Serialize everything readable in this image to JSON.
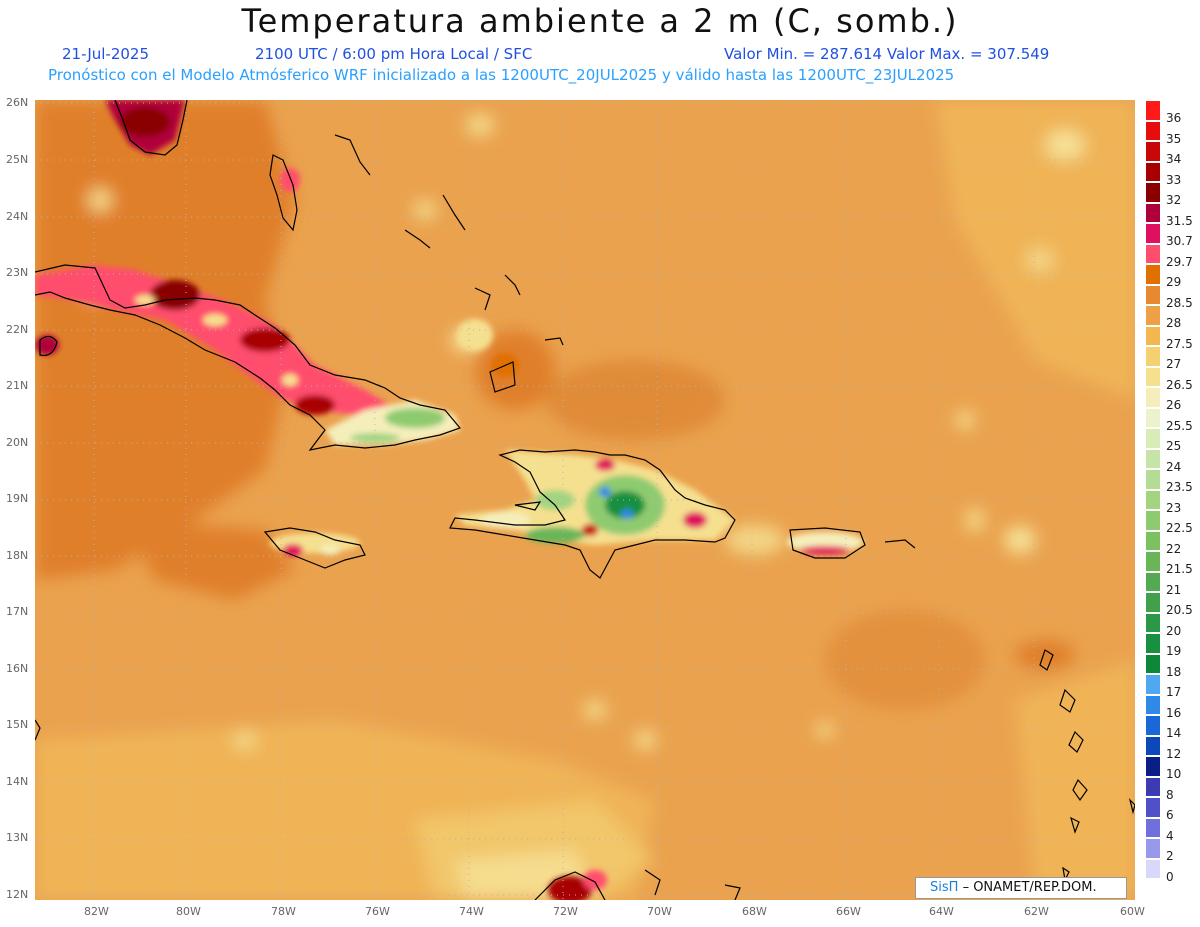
{
  "header": {
    "title": "Temperatura ambiente a 2 m (C, somb.)",
    "date": "21-Jul-2025",
    "time": "2100 UTC / 6:00 pm Hora Local / SFC",
    "minmax": "Valor Min. = 287.614  Valor Max. = 307.549",
    "model": "Pronóstico con el Modelo Atmósferico WRF inicializado a las 1200UTC_20JUL2025 y válido hasta las  1200UTC_23JUL2025"
  },
  "lat_labels": [
    "26N",
    "25N",
    "24N",
    "23N",
    "22N",
    "21N",
    "20N",
    "19N",
    "18N",
    "17N",
    "16N",
    "15N",
    "14N",
    "13N",
    "12N"
  ],
  "lon_labels": [
    "82W",
    "80W",
    "78W",
    "76W",
    "74W",
    "72W",
    "70W",
    "68W",
    "66W",
    "64W",
    "62W",
    "60W"
  ],
  "colorbar": {
    "labels": [
      "36",
      "35",
      "34",
      "33",
      "32",
      "31.5",
      "30.7",
      "29.7",
      "29",
      "28.5",
      "28",
      "27.5",
      "27",
      "26.5",
      "26",
      "25.5",
      "25",
      "24",
      "23.5",
      "23",
      "22.5",
      "22",
      "21.5",
      "21",
      "20.5",
      "20",
      "19",
      "18",
      "17",
      "16",
      "14",
      "12",
      "10",
      "8",
      "6",
      "4",
      "2",
      "0"
    ],
    "colors": [
      "#ff1a1a",
      "#e80d0d",
      "#c80808",
      "#a80000",
      "#8a0000",
      "#b0003a",
      "#e01060",
      "#ff4d6d",
      "#e07000",
      "#e88830",
      "#eda045",
      "#f2b850",
      "#f5d070",
      "#f5e090",
      "#f5eebb",
      "#ecf2cc",
      "#d8ecb8",
      "#c6e4a6",
      "#b4dc94",
      "#a2d482",
      "#8ecb70",
      "#7cc160",
      "#68b658",
      "#54aa52",
      "#40a04c",
      "#2a9846",
      "#189040",
      "#0d8838",
      "#50a8f0",
      "#3088e8",
      "#1a68d8",
      "#0c48b8",
      "#0a1e88",
      "#3c3cb0",
      "#5050c8",
      "#7070dc",
      "#9898ec",
      "#d8d8fa"
    ]
  },
  "credit": {
    "brand": "SisΠ",
    "text": "– ONAMET/REP.DOM."
  }
}
